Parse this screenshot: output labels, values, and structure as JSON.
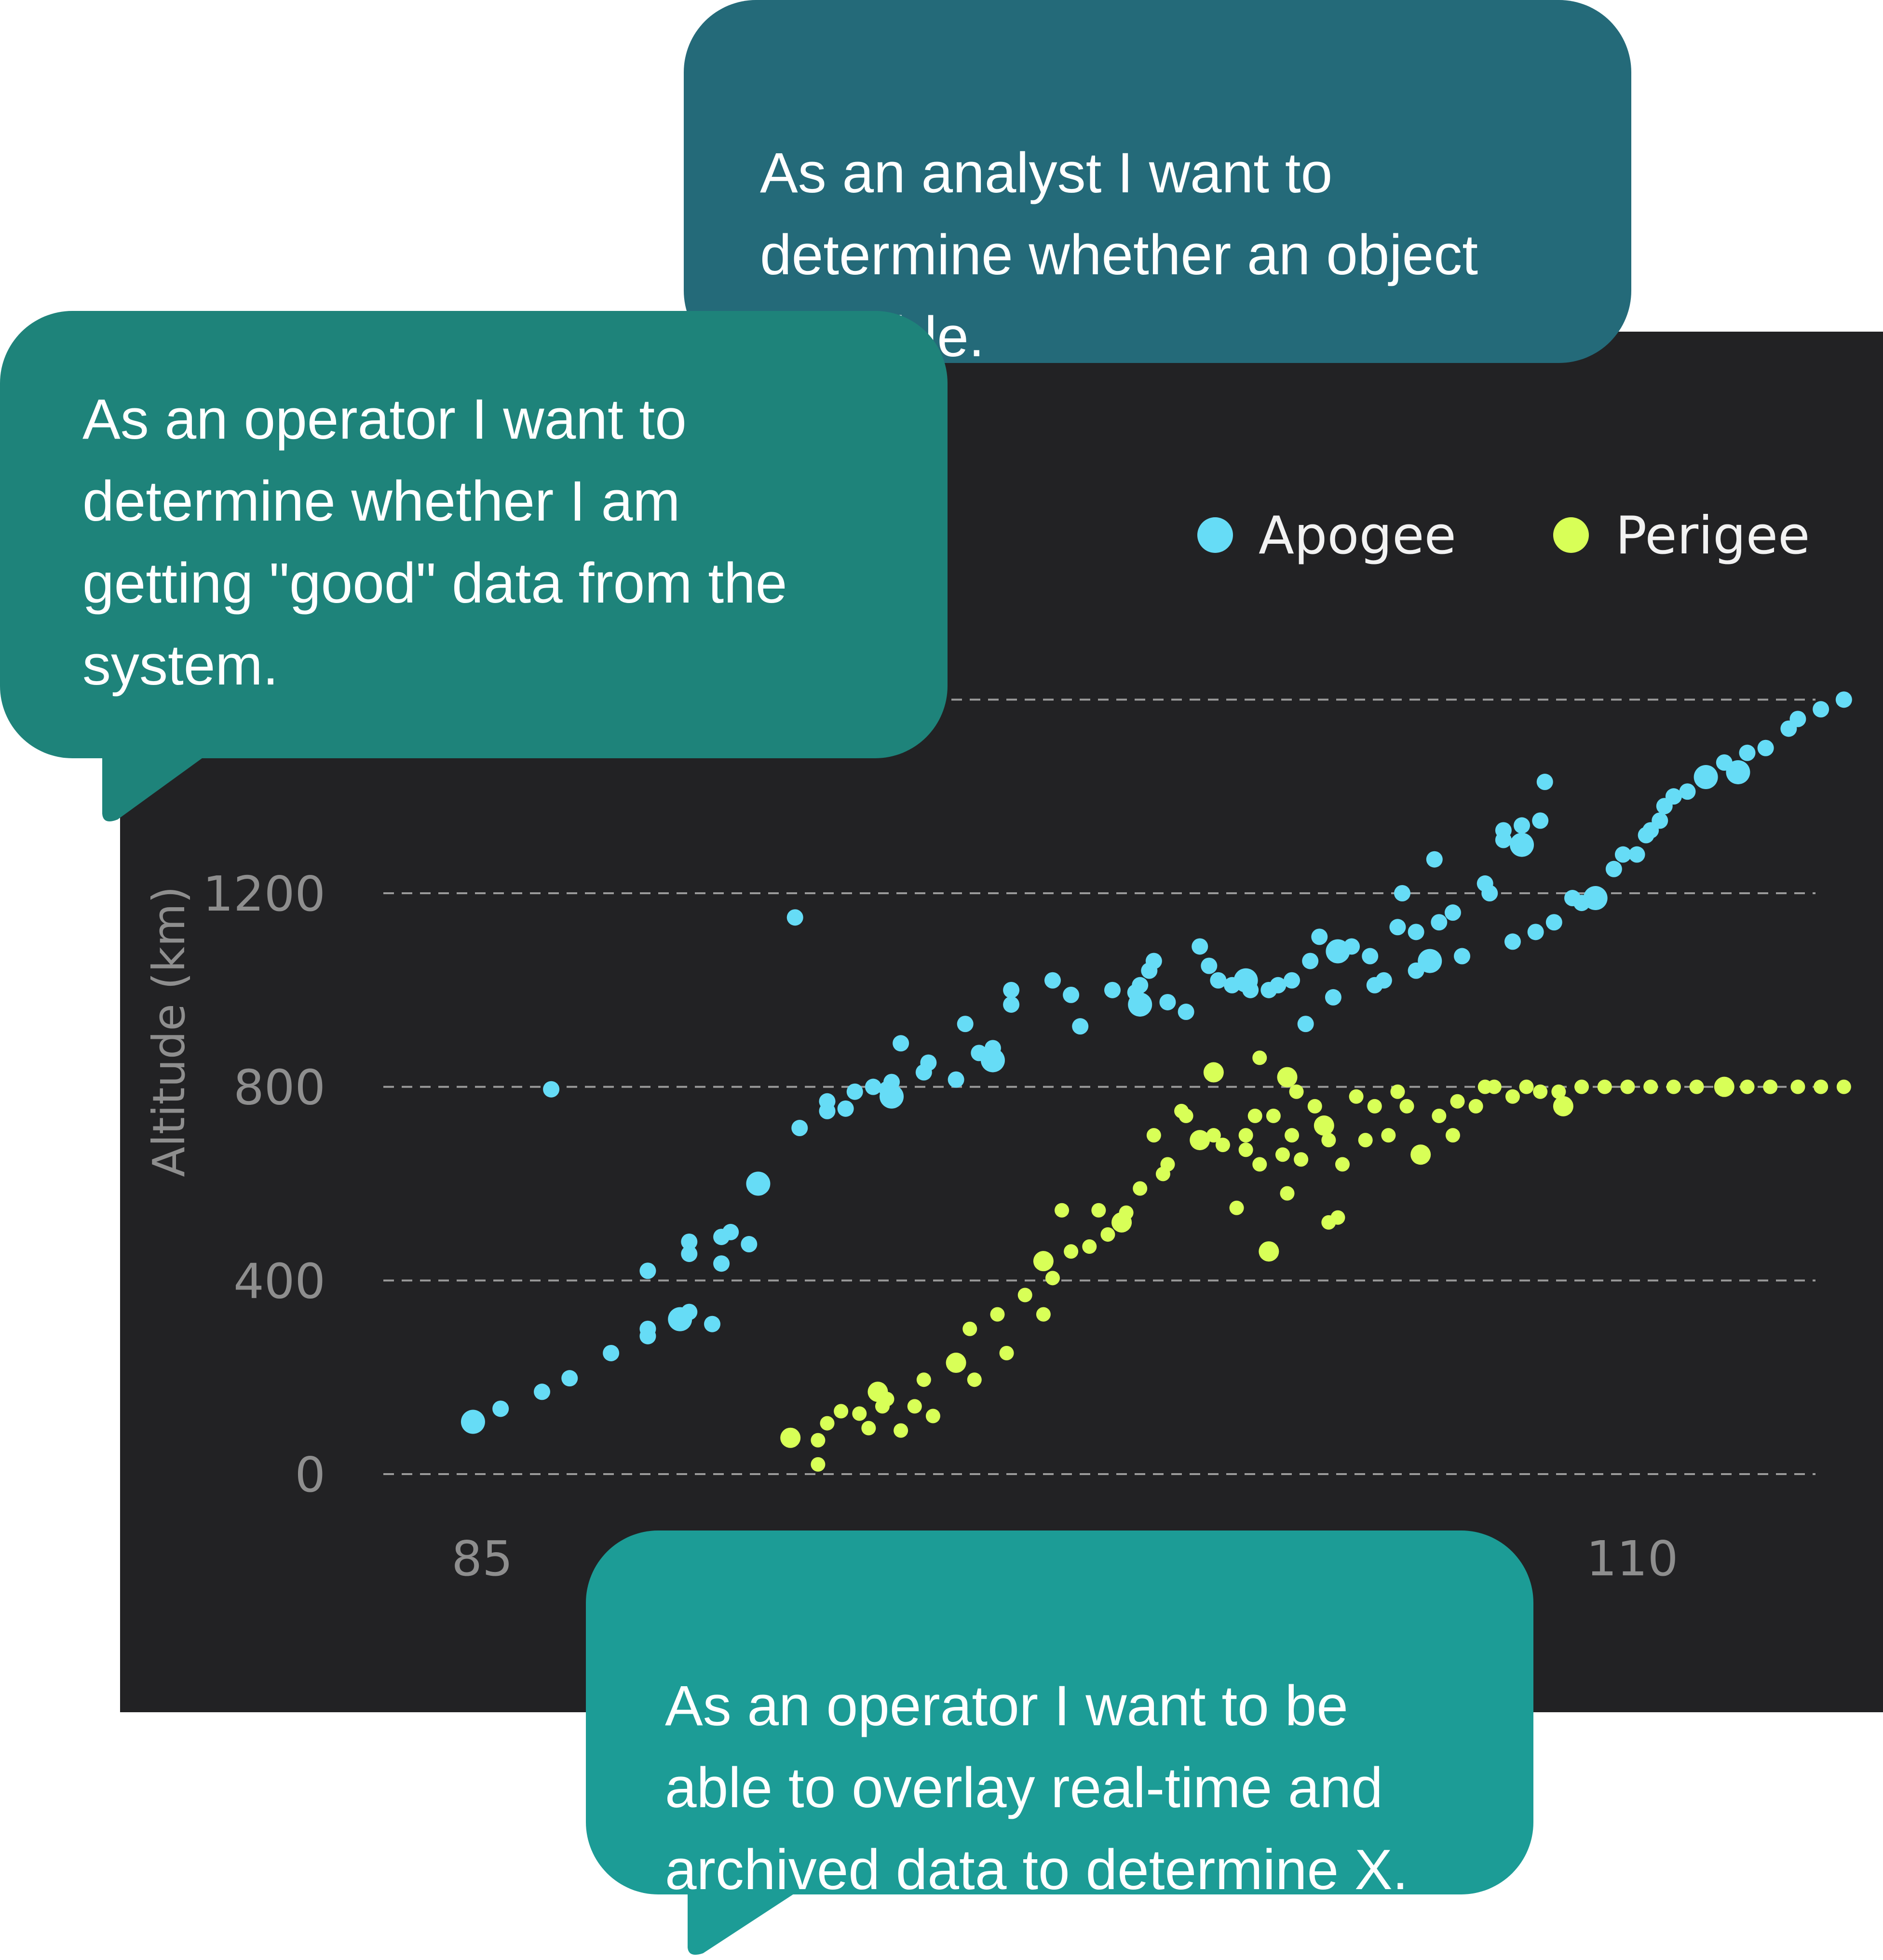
{
  "callouts": {
    "analyst": "As an analyst I want to\ndetermine whether an object\nis stable.",
    "operator_data": "As an operator I want to\ndetermine whether I am\ngetting \"good\" data from the\nsystem.",
    "operator_overlay": "As an operator I want to be\nable to overlay real-time and\narchived data to determine X."
  },
  "colors": {
    "panel": "#222224",
    "apogee": "#66dcf6",
    "perigee": "#d8ff57",
    "grid": "#9a9a9a",
    "tick_text": "#8e8e8e",
    "analyst_bubble": "#246a79",
    "operator_bubble": "#1e837a",
    "overlay_bubble": "#1c9c96"
  },
  "chart_data": {
    "type": "scatter",
    "title": "",
    "xlabel": "",
    "ylabel": "Altitude (km)",
    "xlim": [
      84.1,
      115
    ],
    "ylim": [
      0,
      1600
    ],
    "xticks": [
      "85",
      "110"
    ],
    "xtick_values": [
      85,
      110
    ],
    "yticks": [
      "0",
      "400",
      "800",
      "1200"
    ],
    "ytick_values": [
      0,
      400,
      800,
      1200
    ],
    "grid": "horizontal dashed",
    "legend_position": "top-right",
    "series": [
      {
        "name": "Apogee",
        "color": "#66dcf6",
        "points": [
          [
            84.8,
            108
          ],
          [
            85.4,
            135
          ],
          [
            86.3,
            170
          ],
          [
            86.9,
            198
          ],
          [
            87.8,
            250
          ],
          [
            86.5,
            795
          ],
          [
            88.6,
            285
          ],
          [
            88.6,
            300
          ],
          [
            88.6,
            420
          ],
          [
            89.3,
            320
          ],
          [
            89.5,
            335
          ],
          [
            89.5,
            455
          ],
          [
            89.5,
            480
          ],
          [
            90.0,
            310
          ],
          [
            90.2,
            435
          ],
          [
            90.2,
            490
          ],
          [
            90.4,
            500
          ],
          [
            90.8,
            475
          ],
          [
            91.0,
            600
          ],
          [
            91.8,
            1150
          ],
          [
            91.9,
            715
          ],
          [
            92.5,
            750
          ],
          [
            92.5,
            770
          ],
          [
            92.9,
            755
          ],
          [
            93.1,
            790
          ],
          [
            93.5,
            800
          ],
          [
            93.8,
            795
          ],
          [
            93.9,
            780
          ],
          [
            93.9,
            810
          ],
          [
            94.1,
            890
          ],
          [
            94.6,
            830
          ],
          [
            94.7,
            850
          ],
          [
            95.3,
            815
          ],
          [
            95.5,
            930
          ],
          [
            95.8,
            870
          ],
          [
            96.1,
            880
          ],
          [
            96.1,
            855
          ],
          [
            96.5,
            970
          ],
          [
            96.5,
            1000
          ],
          [
            97.4,
            1020
          ],
          [
            97.8,
            990
          ],
          [
            98.0,
            925
          ],
          [
            98.7,
            1000
          ],
          [
            99.2,
            995
          ],
          [
            99.3,
            1010
          ],
          [
            99.3,
            970
          ],
          [
            99.5,
            1040
          ],
          [
            99.6,
            1060
          ],
          [
            99.9,
            975
          ],
          [
            100.3,
            955
          ],
          [
            100.6,
            1090
          ],
          [
            100.8,
            1050
          ],
          [
            101.0,
            1020
          ],
          [
            101.3,
            1010
          ],
          [
            101.6,
            1020
          ],
          [
            101.7,
            1000
          ],
          [
            102.1,
            1000
          ],
          [
            102.3,
            1010
          ],
          [
            102.6,
            1020
          ],
          [
            102.9,
            930
          ],
          [
            103.0,
            1060
          ],
          [
            103.2,
            1110
          ],
          [
            103.5,
            985
          ],
          [
            103.6,
            1080
          ],
          [
            103.9,
            1090
          ],
          [
            104.3,
            1070
          ],
          [
            104.4,
            1010
          ],
          [
            104.6,
            1020
          ],
          [
            104.9,
            1130
          ],
          [
            105.0,
            1200
          ],
          [
            105.3,
            1040
          ],
          [
            105.3,
            1120
          ],
          [
            105.6,
            1060
          ],
          [
            105.7,
            1270
          ],
          [
            105.8,
            1140
          ],
          [
            106.1,
            1160
          ],
          [
            106.3,
            1070
          ],
          [
            106.8,
            1220
          ],
          [
            106.9,
            1200
          ],
          [
            107.2,
            1310
          ],
          [
            107.2,
            1330
          ],
          [
            107.6,
            1300
          ],
          [
            107.6,
            1340
          ],
          [
            107.4,
            1100
          ],
          [
            108.0,
            1350
          ],
          [
            108.1,
            1430
          ],
          [
            107.9,
            1120
          ],
          [
            108.3,
            1140
          ],
          [
            108.7,
            1190
          ],
          [
            108.9,
            1180
          ],
          [
            109.2,
            1190
          ],
          [
            109.6,
            1250
          ],
          [
            110.1,
            1280
          ],
          [
            110.3,
            1320
          ],
          [
            110.4,
            1330
          ],
          [
            110.6,
            1350
          ],
          [
            110.7,
            1380
          ],
          [
            110.9,
            1400
          ],
          [
            111.2,
            1410
          ],
          [
            111.6,
            1440
          ],
          [
            112.0,
            1470
          ],
          [
            112.5,
            1490
          ],
          [
            112.9,
            1500
          ],
          [
            113.4,
            1540
          ],
          [
            113.6,
            1560
          ],
          [
            114.1,
            1580
          ],
          [
            114.6,
            1600
          ],
          [
            109.8,
            1280
          ],
          [
            112.3,
            1450
          ]
        ]
      },
      {
        "name": "Perigee",
        "color": "#d8ff57",
        "points": [
          [
            91.7,
            75
          ],
          [
            92.3,
            20
          ],
          [
            92.3,
            70
          ],
          [
            92.5,
            105
          ],
          [
            92.8,
            130
          ],
          [
            93.2,
            125
          ],
          [
            93.4,
            95
          ],
          [
            93.6,
            170
          ],
          [
            93.7,
            140
          ],
          [
            93.8,
            155
          ],
          [
            94.1,
            90
          ],
          [
            94.4,
            140
          ],
          [
            94.6,
            195
          ],
          [
            94.8,
            120
          ],
          [
            95.3,
            230
          ],
          [
            95.6,
            300
          ],
          [
            95.7,
            195
          ],
          [
            96.2,
            330
          ],
          [
            96.4,
            250
          ],
          [
            96.8,
            370
          ],
          [
            97.2,
            330
          ],
          [
            97.2,
            440
          ],
          [
            97.4,
            405
          ],
          [
            97.6,
            545
          ],
          [
            97.8,
            460
          ],
          [
            98.2,
            470
          ],
          [
            98.4,
            545
          ],
          [
            98.6,
            495
          ],
          [
            98.9,
            520
          ],
          [
            99.0,
            540
          ],
          [
            99.3,
            590
          ],
          [
            99.6,
            700
          ],
          [
            99.8,
            620
          ],
          [
            100.2,
            750
          ],
          [
            100.3,
            740
          ],
          [
            100.6,
            690
          ],
          [
            100.9,
            700
          ],
          [
            101.1,
            680
          ],
          [
            101.4,
            550
          ],
          [
            101.6,
            700
          ],
          [
            101.8,
            740
          ],
          [
            101.9,
            640
          ],
          [
            102.1,
            460
          ],
          [
            102.2,
            740
          ],
          [
            102.4,
            660
          ],
          [
            102.5,
            580
          ],
          [
            102.6,
            700
          ],
          [
            102.8,
            650
          ],
          [
            103.1,
            760
          ],
          [
            103.3,
            720
          ],
          [
            103.4,
            690
          ],
          [
            103.7,
            640
          ],
          [
            104.2,
            690
          ],
          [
            104.4,
            760
          ],
          [
            104.7,
            700
          ],
          [
            105.1,
            760
          ],
          [
            105.4,
            660
          ],
          [
            105.8,
            740
          ],
          [
            106.1,
            700
          ],
          [
            106.6,
            760
          ],
          [
            107.0,
            800
          ],
          [
            107.4,
            780
          ],
          [
            108.0,
            790
          ],
          [
            108.5,
            760
          ],
          [
            108.9,
            800
          ],
          [
            109.4,
            800
          ],
          [
            109.9,
            800
          ],
          [
            110.4,
            800
          ],
          [
            110.9,
            800
          ],
          [
            111.4,
            800
          ],
          [
            112.0,
            800
          ],
          [
            112.5,
            800
          ],
          [
            113.0,
            800
          ],
          [
            113.6,
            800
          ],
          [
            114.1,
            800
          ],
          [
            114.6,
            800
          ],
          [
            101.9,
            860
          ],
          [
            100.9,
            830
          ],
          [
            104.0,
            780
          ],
          [
            104.9,
            790
          ],
          [
            103.6,
            530
          ],
          [
            99.9,
            640
          ],
          [
            101.6,
            670
          ],
          [
            103.4,
            520
          ],
          [
            102.5,
            820
          ],
          [
            106.2,
            770
          ],
          [
            108.4,
            790
          ],
          [
            102.7,
            790
          ],
          [
            106.8,
            800
          ],
          [
            107.7,
            800
          ]
        ]
      }
    ]
  }
}
